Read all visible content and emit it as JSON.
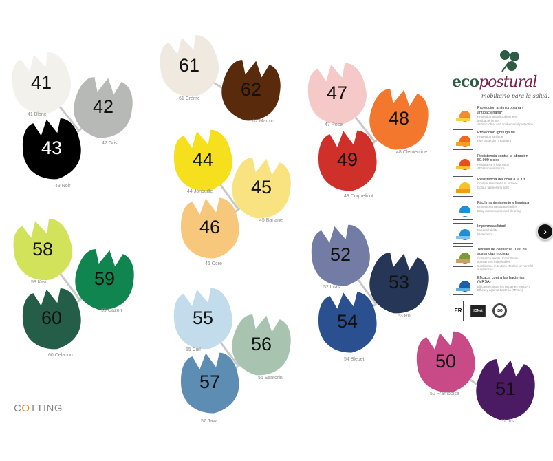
{
  "swatches": [
    {
      "num": "41",
      "label": "41 Blanc",
      "color": "#f2f1ec"
    },
    {
      "num": "42",
      "label": "42 Gris",
      "color": "#b7b9b6"
    },
    {
      "num": "43",
      "label": "43 Noir",
      "color": "#000000"
    },
    {
      "num": "61",
      "label": "61 Crème",
      "color": "#efe9e0"
    },
    {
      "num": "62",
      "label": "62 Marron",
      "color": "#5a2a0c"
    },
    {
      "num": "44",
      "label": "44 Jonquille",
      "color": "#f6e01d"
    },
    {
      "num": "45",
      "label": "45 Banane",
      "color": "#f8e380"
    },
    {
      "num": "46",
      "label": "46 Ocre",
      "color": "#f7c77b"
    },
    {
      "num": "47",
      "label": "47 Rose",
      "color": "#f6c9c9"
    },
    {
      "num": "48",
      "label": "48 Clémentine",
      "color": "#f4772e"
    },
    {
      "num": "49",
      "label": "49 Coquelicot",
      "color": "#d0302a"
    },
    {
      "num": "58",
      "label": "58 Kiwi",
      "color": "#d3e25b"
    },
    {
      "num": "59",
      "label": "59 Gazon",
      "color": "#118550"
    },
    {
      "num": "60",
      "label": "60 Celadon",
      "color": "#255e48"
    },
    {
      "num": "52",
      "label": "52 Lilas",
      "color": "#737ca5"
    },
    {
      "num": "53",
      "label": "53 Roi",
      "color": "#263656"
    },
    {
      "num": "54",
      "label": "54 Bleuet",
      "color": "#2b5090"
    },
    {
      "num": "55",
      "label": "55 Ciel",
      "color": "#c2dcec"
    },
    {
      "num": "56",
      "label": "56 Santorin",
      "color": "#a8c3b0"
    },
    {
      "num": "57",
      "label": "57 Java",
      "color": "#5d8db3"
    },
    {
      "num": "50",
      "label": "50 Framboise",
      "color": "#c84a86"
    },
    {
      "num": "51",
      "label": "51 Iris",
      "color": "#4a1b63"
    }
  ],
  "brand": {
    "name_a": "eco",
    "name_b": "postural",
    "tagline": "mobiliario para la salud."
  },
  "features": [
    {
      "title": "Protección antimicrobiana y antibacteriana*",
      "fr": "Protection antimicrobienne et antibactérienne",
      "en": "Antimicrobial and antibacterial protection",
      "icon": "sun-bacteria-icon"
    },
    {
      "title": "Protección ignífuga M²",
      "fr": "Protection ignifuge",
      "en": "Fire protection treatment",
      "icon": "flame-icon"
    },
    {
      "title": "Resistencia contra la abrasión 50.000 ciclos",
      "fr": "Résistance à l'abrasion",
      "en": "Abrasion resistance",
      "icon": "abrasion-icon"
    },
    {
      "title": "Resistencia del color a la luz",
      "fr": "Couleur résistant à la lumière",
      "en": "Colour fastness to light",
      "icon": "sunrise-icon"
    },
    {
      "title": "Fácil mantenimiento y limpieza",
      "fr": "Entretien et nettoyage faciles",
      "en": "Easy maintenance and cleaning",
      "icon": "cleaning-icon"
    },
    {
      "title": "Impermeabilidad",
      "fr": "Imperméabilité",
      "en": "Waterproof",
      "icon": "water-drop-icon"
    },
    {
      "title": "Textiles de confianza. Test de sustancias nocivas",
      "fr": "Confiance textile. Contrôle de substances indésirables",
      "en": "Confidence in textiles. Tested for harmful substances",
      "icon": "oeko-tex-icon"
    },
    {
      "title": "Eficacia contra las bacterias (MRSA)",
      "fr": "Efficacité contre les bactéries (MRSA)",
      "en": "Efficacy against bacteria (MRSA)",
      "icon": "mrsa-shield-icon"
    }
  ],
  "certs": [
    "ER",
    "IQNet",
    "ISO"
  ],
  "footer_logo": {
    "a": "C",
    "b": "O",
    "c": "TTING"
  },
  "nav": {
    "next": "›"
  }
}
